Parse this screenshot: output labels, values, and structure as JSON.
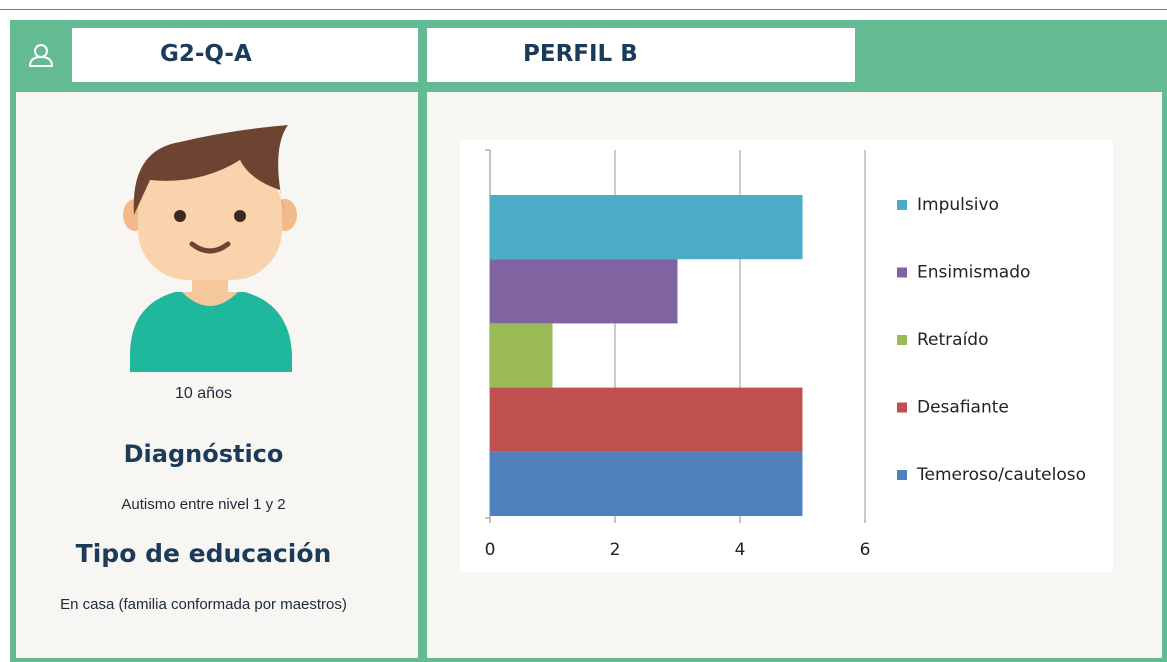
{
  "header": {
    "code": "G2-Q-A",
    "profile": "PERFIL B"
  },
  "profile": {
    "age": "10 años",
    "diagnosis_title": "Diagnóstico",
    "diagnosis": "Autismo entre nivel 1 y 2",
    "education_title": "Tipo de educación",
    "education": "En casa (familia conformada por maestros)"
  },
  "chart_data": {
    "type": "bar",
    "orientation": "horizontal",
    "series": [
      {
        "name": "Impulsivo",
        "color": "#4bacc6",
        "values": [
          5
        ]
      },
      {
        "name": "Ensimismado",
        "color": "#8064a2",
        "values": [
          3
        ]
      },
      {
        "name": "Retraído",
        "color": "#9bbb59",
        "values": [
          1
        ]
      },
      {
        "name": "Desafiante",
        "color": "#c0504d",
        "values": [
          5
        ]
      },
      {
        "name": "Temeroso/cauteloso",
        "color": "#4f81bd",
        "values": [
          5
        ]
      }
    ],
    "xlim": [
      0,
      6
    ],
    "xticks": [
      0,
      2,
      4,
      6
    ],
    "grid": true,
    "legend": "right"
  }
}
